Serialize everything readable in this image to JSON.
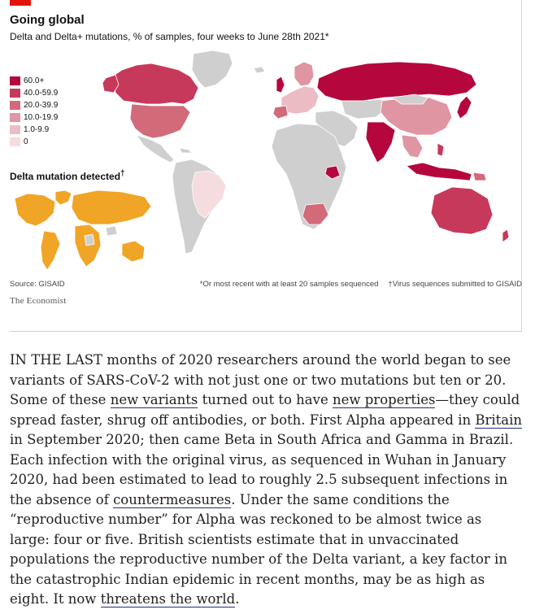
{
  "header": {
    "title": "Going global",
    "subtitle": "Delta and Delta+ mutations, % of samples, four weeks to June 28th 2021*"
  },
  "legend": {
    "items": [
      {
        "label": "60.0+",
        "color": "#b5063d"
      },
      {
        "label": "40.0-59.9",
        "color": "#c7395a"
      },
      {
        "label": "20.0-39.9",
        "color": "#d26a7a"
      },
      {
        "label": "10.0-19.9",
        "color": "#e095a2"
      },
      {
        "label": "1.0-9.9",
        "color": "#ecbcc4"
      },
      {
        "label": "0",
        "color": "#f5dcdf"
      }
    ],
    "no_data_color": "#cfcfcf"
  },
  "inset": {
    "title": "Delta mutation detected",
    "title_mark": "†",
    "detected_color": "#f0a527"
  },
  "footer": {
    "source": "Source: GISAID",
    "note_star": "*Or most recent with at least 20 samples sequenced",
    "note_dagger": "†Virus sequences submitted to GISAID",
    "brand": "The Economist"
  },
  "article": {
    "p1": "IN THE LAST months of 2020 researchers around the world began to see variants of SARS-CoV-2 with not just one or two mutations but ten or 20. Some of these ",
    "link_new_variants": "new variants",
    "p2": " turned out to have ",
    "link_new_properties": "new properties",
    "p3": "—they could spread faster, shrug off antibodies, or both. First Alpha appeared in ",
    "link_britain": "Britain",
    "p4": " in September 2020; then came Beta in South Africa and Gamma in Brazil. Each infection with the original virus, as sequenced in Wuhan in January 2020, had been estimated to lead to roughly 2.5 subsequent infections in the absence of ",
    "link_countermeasures": "countermeasures",
    "p5": ". Under the same conditions the “reproductive number” for Alpha was reckoned to be almost twice as large: four or five. British scientists estimate that in unvaccinated populations the reproductive number of the Delta variant, a key factor in the catastrophic Indian epidemic in recent months, may be as high as eight. It now ",
    "link_threatens": "threatens the world",
    "p6": "."
  }
}
